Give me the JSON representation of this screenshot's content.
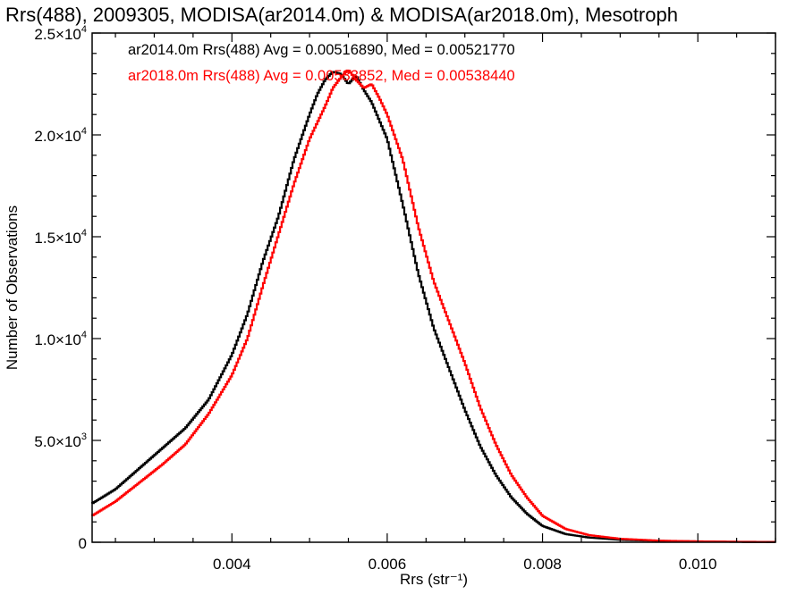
{
  "chart_data": {
    "type": "line",
    "title": "Rrs(488), 2009305, MODISA(ar2014.0m) & MODISA(ar2018.0m), Mesotroph",
    "xlabel": "Rrs (str⁻¹)",
    "ylabel": "Number of Observations",
    "xlim": [
      0.0022,
      0.011
    ],
    "ylim": [
      0,
      25000
    ],
    "xticks": [
      {
        "value": 0.004,
        "label": "0.004"
      },
      {
        "value": 0.006,
        "label": "0.006"
      },
      {
        "value": 0.008,
        "label": "0.008"
      },
      {
        "value": 0.01,
        "label": "0.010"
      }
    ],
    "yticks": [
      {
        "value": 0,
        "mant": "0",
        "exp": ""
      },
      {
        "value": 5000,
        "mant": "5.0×10",
        "exp": "3"
      },
      {
        "value": 10000,
        "mant": "1.0×10",
        "exp": "4"
      },
      {
        "value": 15000,
        "mant": "1.5×10",
        "exp": "4"
      },
      {
        "value": 20000,
        "mant": "2.0×10",
        "exp": "4"
      },
      {
        "value": 25000,
        "mant": "2.5×10",
        "exp": "4"
      }
    ],
    "grid": false,
    "legend_position": "top-left",
    "series": [
      {
        "name": "ar2014.0m",
        "color": "#000000",
        "legend": "ar2014.0m Rrs(488) Avg = 0.00516890, Med = 0.00521770",
        "x": [
          0.0022,
          0.0025,
          0.0028,
          0.0031,
          0.0034,
          0.0037,
          0.004,
          0.0042,
          0.0044,
          0.0046,
          0.0048,
          0.005,
          0.0051,
          0.0052,
          0.0053,
          0.0054,
          0.0055,
          0.0056,
          0.0057,
          0.0058,
          0.006,
          0.0062,
          0.0064,
          0.0066,
          0.0068,
          0.007,
          0.0072,
          0.0074,
          0.0076,
          0.0078,
          0.008,
          0.0083,
          0.0086,
          0.009,
          0.0095,
          0.01,
          0.0105,
          0.011
        ],
        "y": [
          1900,
          2600,
          3600,
          4600,
          5600,
          7000,
          9200,
          11200,
          13800,
          16000,
          18800,
          21000,
          22000,
          22700,
          23100,
          23000,
          22500,
          22900,
          22200,
          21600,
          19800,
          16600,
          13200,
          10500,
          8500,
          6500,
          4700,
          3300,
          2200,
          1400,
          800,
          400,
          230,
          120,
          70,
          40,
          20,
          10
        ]
      },
      {
        "name": "ar2018.0m",
        "color": "#ff0000",
        "legend": "ar2018.0m Rrs(488) Avg = 0.00533852, Med = 0.00538440",
        "x": [
          0.0022,
          0.0025,
          0.0028,
          0.0031,
          0.0034,
          0.0037,
          0.004,
          0.0042,
          0.0044,
          0.0046,
          0.0048,
          0.005,
          0.0052,
          0.0053,
          0.0054,
          0.0055,
          0.0056,
          0.0057,
          0.0058,
          0.0059,
          0.006,
          0.0062,
          0.0064,
          0.0066,
          0.0068,
          0.007,
          0.0072,
          0.0074,
          0.0076,
          0.0078,
          0.008,
          0.0083,
          0.0086,
          0.009,
          0.0095,
          0.01,
          0.0105,
          0.011
        ],
        "y": [
          1300,
          2000,
          2900,
          3800,
          4800,
          6300,
          8200,
          10000,
          12600,
          15100,
          17600,
          19800,
          21400,
          22300,
          22800,
          23200,
          22700,
          22300,
          22500,
          21800,
          21000,
          18800,
          15500,
          12800,
          10800,
          8800,
          6600,
          4800,
          3300,
          2200,
          1300,
          650,
          350,
          170,
          80,
          45,
          25,
          15
        ]
      }
    ]
  }
}
